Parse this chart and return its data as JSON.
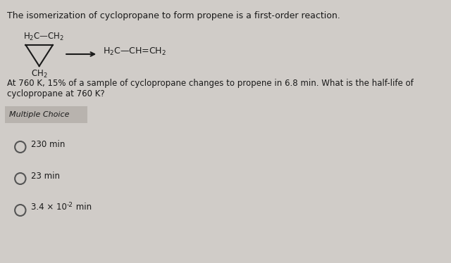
{
  "background_color": "#d0ccc8",
  "header_text": "The isomerization of cyclopropane to form propene is a first-order reaction.",
  "question_text": "At 760 K, 15% of a sample of cyclopropane changes to propene in 6.8 min. What is the half-life of cyclopropane at 760 K?",
  "section_label": "Multiple Choice",
  "choices": [
    "230 min",
    "23 min",
    "3.4 × 10⁻² min"
  ],
  "cyclopropane_label_top": "H₂C—CH₂",
  "cyclopropane_label_bottom": "CH₂",
  "propene_label": "H₂C—CH═CH₂",
  "font_color": "#1a1a1a",
  "header_fontsize": 9,
  "body_fontsize": 8.5,
  "choice_fontsize": 8.5,
  "section_fontsize": 8
}
